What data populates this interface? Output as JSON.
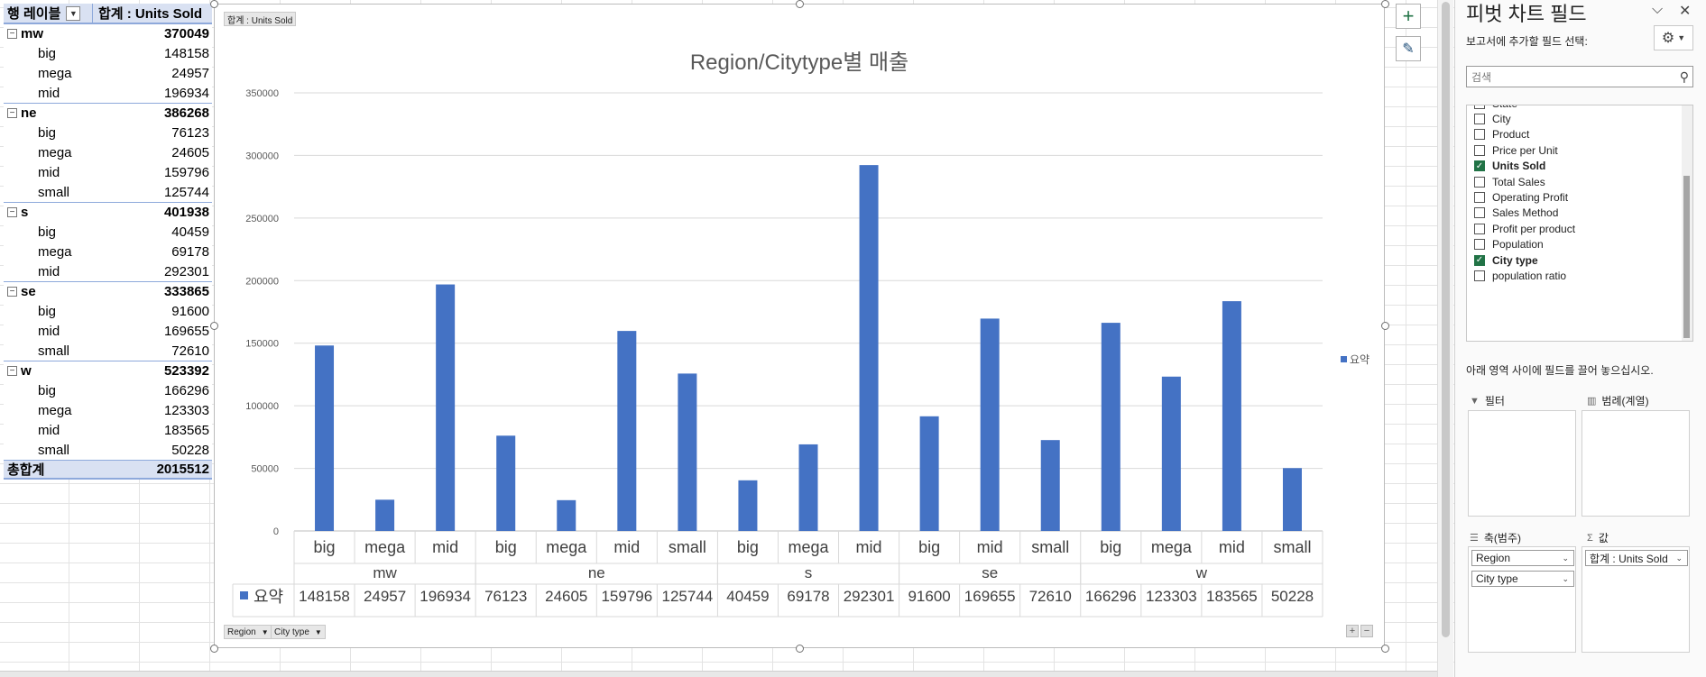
{
  "pivot": {
    "header_row_label": "행 레이블",
    "header_value_label": "합계 : Units Sold",
    "regions": [
      {
        "name": "mw",
        "total": "370049",
        "items": [
          {
            "label": "big",
            "value": "148158"
          },
          {
            "label": "mega",
            "value": "24957"
          },
          {
            "label": "mid",
            "value": "196934"
          }
        ]
      },
      {
        "name": "ne",
        "total": "386268",
        "items": [
          {
            "label": "big",
            "value": "76123"
          },
          {
            "label": "mega",
            "value": "24605"
          },
          {
            "label": "mid",
            "value": "159796"
          },
          {
            "label": "small",
            "value": "125744"
          }
        ]
      },
      {
        "name": "s",
        "total": "401938",
        "items": [
          {
            "label": "big",
            "value": "40459"
          },
          {
            "label": "mega",
            "value": "69178"
          },
          {
            "label": "mid",
            "value": "292301"
          }
        ]
      },
      {
        "name": "se",
        "total": "333865",
        "items": [
          {
            "label": "big",
            "value": "91600"
          },
          {
            "label": "mid",
            "value": "169655"
          },
          {
            "label": "small",
            "value": "72610"
          }
        ]
      },
      {
        "name": "w",
        "total": "523392",
        "items": [
          {
            "label": "big",
            "value": "166296"
          },
          {
            "label": "mega",
            "value": "123303"
          },
          {
            "label": "mid",
            "value": "183565"
          },
          {
            "label": "small",
            "value": "50228"
          }
        ]
      }
    ],
    "grand_total_label": "총합계",
    "grand_total": "2015512"
  },
  "chart_tags": {
    "value_field": "합계 : Units Sold",
    "axis_field_1": "Region",
    "axis_field_2": "City type"
  },
  "chart_data": {
    "type": "bar",
    "title": "Region/Citytype별 매출",
    "xlabel": "",
    "ylabel": "",
    "ylim": [
      0,
      350000
    ],
    "yticks": [
      0,
      50000,
      100000,
      150000,
      200000,
      250000,
      300000,
      350000
    ],
    "grid": true,
    "legend_position": "right",
    "color": "#4472c4",
    "groups": [
      {
        "name": "mw",
        "categories": [
          "big",
          "mega",
          "mid"
        ]
      },
      {
        "name": "ne",
        "categories": [
          "big",
          "mega",
          "mid",
          "small"
        ]
      },
      {
        "name": "s",
        "categories": [
          "big",
          "mega",
          "mid"
        ]
      },
      {
        "name": "se",
        "categories": [
          "big",
          "mid",
          "small"
        ]
      },
      {
        "name": "w",
        "categories": [
          "big",
          "mega",
          "mid",
          "small"
        ]
      }
    ],
    "series": [
      {
        "name": "요약",
        "values": [
          148158,
          24957,
          196934,
          76123,
          24605,
          159796,
          125744,
          40459,
          69178,
          292301,
          91600,
          169655,
          72610,
          166296,
          123303,
          183565,
          50228
        ]
      }
    ]
  },
  "pane": {
    "title": "피벗 차트 필드",
    "subtitle": "보고서에 추가할 필드 선택:",
    "search_placeholder": "검색",
    "fields": [
      {
        "label": "State",
        "checked": false
      },
      {
        "label": "City",
        "checked": false
      },
      {
        "label": "Product",
        "checked": false
      },
      {
        "label": "Price per Unit",
        "checked": false
      },
      {
        "label": "Units Sold",
        "checked": true
      },
      {
        "label": "Total Sales",
        "checked": false
      },
      {
        "label": "Operating Profit",
        "checked": false
      },
      {
        "label": "Sales Method",
        "checked": false
      },
      {
        "label": "Profit per product",
        "checked": false
      },
      {
        "label": "Population",
        "checked": false
      },
      {
        "label": "City type",
        "checked": true
      },
      {
        "label": "population ratio",
        "checked": false
      }
    ],
    "hint": "아래 영역 사이에 필드를 끌어 놓으십시오.",
    "areas": {
      "filter": "필터",
      "legend": "범례(계열)",
      "axis": "축(범주)",
      "values": "값"
    },
    "axis_fields": [
      "Region",
      "City type"
    ],
    "value_fields": [
      "합계 : Units Sold"
    ]
  }
}
